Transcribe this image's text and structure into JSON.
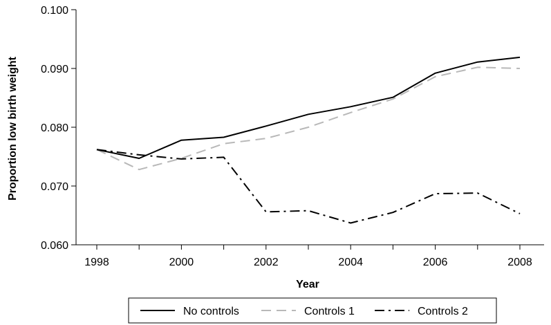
{
  "chart_data": {
    "type": "line",
    "title": "",
    "xlabel": "Year",
    "ylabel": "Proportion low birth weight",
    "x": [
      1998,
      1999,
      2000,
      2001,
      2002,
      2003,
      2004,
      2005,
      2006,
      2007,
      2008
    ],
    "xticks": [
      1998,
      2000,
      2002,
      2004,
      2006,
      2008
    ],
    "xlim": [
      1998,
      2008
    ],
    "yticks": [
      "0.060",
      "0.070",
      "0.080",
      "0.090",
      "0.100"
    ],
    "ylim": [
      0.06,
      0.1
    ],
    "grid": false,
    "legend_position": "bottom",
    "series": [
      {
        "name": "No controls",
        "style": "solid",
        "color": "#000000",
        "values": [
          0.0762,
          0.0747,
          0.0778,
          0.0783,
          0.0802,
          0.0822,
          0.0835,
          0.0851,
          0.0892,
          0.0911,
          0.0919
        ]
      },
      {
        "name": "Controls 1",
        "style": "dashed",
        "color": "#b8b8b8",
        "values": [
          0.0762,
          0.0728,
          0.0747,
          0.0772,
          0.0781,
          0.08,
          0.0825,
          0.0848,
          0.0886,
          0.0902,
          0.09
        ]
      },
      {
        "name": "Controls 2",
        "style": "dashdot",
        "color": "#000000",
        "values": [
          0.0762,
          0.0753,
          0.0746,
          0.0749,
          0.0656,
          0.0658,
          0.0637,
          0.0655,
          0.0687,
          0.0688,
          0.0653
        ]
      }
    ]
  }
}
